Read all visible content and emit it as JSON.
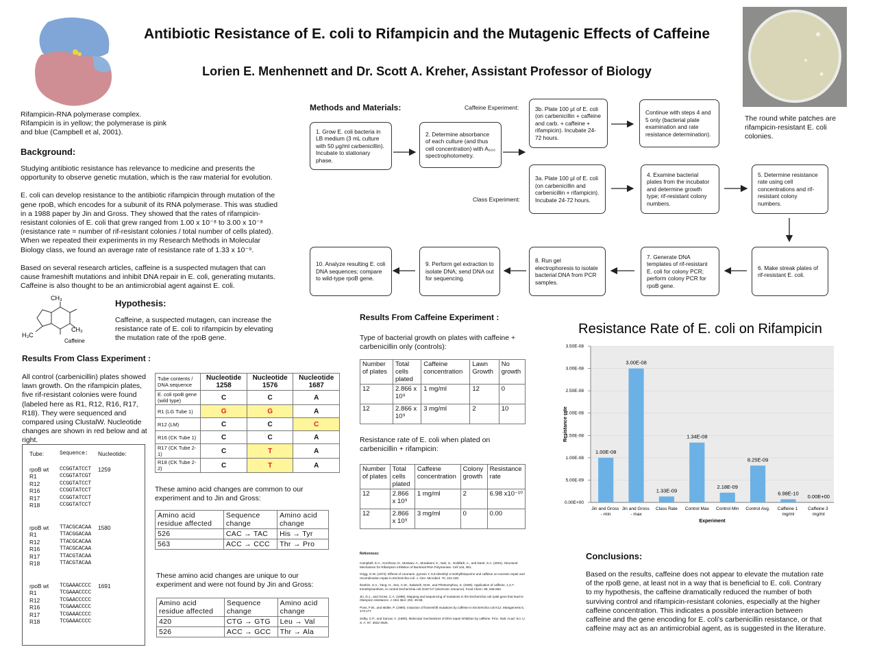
{
  "header": {
    "title": "Antibiotic Resistance of E. coli to Rifampicin and the Mutagenic Effects of Caffeine",
    "authors": "Lorien E. Menhennett and Dr. Scott A. Kreher, Assistant Professor of Biology"
  },
  "images": {
    "left_caption": "Rifampicin-RNA polymerase complex. Rifampicin is in yellow; the polymerase is pink and blue (Campbell et al, 2001).",
    "right_caption": "The round white patches are rifampicin-resistant E. coli colonies."
  },
  "background": {
    "heading": "Background:",
    "paragraphs": [
      "Studying antibiotic resistance has relevance to medicine and presents the opportunity to observe genetic mutation, which is the raw material for evolution.",
      "E. coli can develop resistance to the antibiotic rifampicin through mutation of the gene rpoB, which encodes for a subunit of its RNA polymerase. This was studied in a 1988 paper by Jin and Gross. They showed that the rates of rifampicin-resistant colonies of E. coli that grew ranged from 1.00 x 10⁻⁸ to 3.00 x 10⁻⁸ (resistance rate = number of rif-resistant colonies / total number of cells plated). When we repeated their experiments in my Research Methods in Molecular Biology class, we found an average rate of resistance rate of 1.33 x 10⁻⁹.",
      "Based on several research articles, caffeine is a suspected mutagen that can cause frameshift mutations and inhibit DNA repair in E. coli, generating mutants. Caffeine is also thought to be an antimicrobial agent against E. coli."
    ]
  },
  "hypothesis": {
    "heading": "Hypothesis:",
    "text": "Caffeine, a suspected mutagen, can increase the resistance rate of E. coli to rifampicin by elevating the mutation rate of the rpoB gene.",
    "molecule_labels": [
      "CH₃",
      "CH₃",
      "H₃C",
      "Caffeine"
    ]
  },
  "class_results": {
    "heading": "Results From Class Experiment :",
    "text": "All control (carbenicillin) plates showed lawn growth. On the rifampicin plates, five rif-resistant colonies were found (labeled here as R1, R12, R16, R17, R18). They were sequenced and compared using ClustalW. Nucleotide changes are shown in red below and at right.",
    "nucleotide_table": {
      "header": [
        "Tube contents / DNA sequence",
        "Nucleotide 1258",
        "Nucleotide 1576",
        "Nucleotide 1687"
      ],
      "rows": [
        [
          "E. coli rpoB gene (wild type)",
          "C",
          "C",
          "A"
        ],
        [
          "R1 (LG Tube 1)",
          "G",
          "G",
          "A"
        ],
        [
          "R12 (LM)",
          "C",
          "C",
          "C"
        ],
        [
          "R16 (CK Tube 1)",
          "C",
          "C",
          "A"
        ],
        [
          "R17 (CK Tube 2-1)",
          "C",
          "T",
          "A"
        ],
        [
          "R18 (CK Tube 2-2)",
          "C",
          "T",
          "A"
        ]
      ]
    },
    "alignment": {
      "header": [
        "Tube:",
        "Sequence:",
        "Nucleotide:"
      ],
      "groups": [
        [
          [
            "rpoB wt",
            "CCGGTATCCT",
            "1259"
          ],
          [
            "R1",
            "CCGGTATCGT"
          ],
          [
            "R12",
            "CCGGTATCCT"
          ],
          [
            "R16",
            "CCGGTATCCT"
          ],
          [
            "R17",
            "CCGGTATCCT"
          ],
          [
            "R18",
            "CCGGTATCCT"
          ]
        ],
        [
          [
            "rpoB wt",
            "TTACGCACAA",
            "1580"
          ],
          [
            "R1",
            "TTACGGACAA"
          ],
          [
            "R12",
            "TTACGCACAA"
          ],
          [
            "R16",
            "TTACGCACAA"
          ],
          [
            "R17",
            "TTACGTACAA"
          ],
          [
            "R18",
            "TTACGTACAA"
          ]
        ],
        [
          [
            "rpoB wt",
            "TCGAAACCCC",
            "1691"
          ],
          [
            "R1",
            "TCGAAACCCC"
          ],
          [
            "R12",
            "TCGAACCCCC"
          ],
          [
            "R16",
            "TCGAAACCCC"
          ],
          [
            "R17",
            "TCGAAACCCC"
          ],
          [
            "R18",
            "TCGAAACCCC"
          ]
        ]
      ]
    },
    "common_intro": "These amino acid changes are common to our experiment and to Jin and Gross:",
    "common_table": {
      "header": [
        "Amino acid residue affected",
        "Sequence change",
        "Amino acid change"
      ],
      "rows": [
        [
          "526",
          "CAC → TAC",
          "His → Tyr"
        ],
        [
          "563",
          "ACC → CCC",
          "Thr → Pro"
        ]
      ]
    },
    "unique_intro": "These amino acid changes are unique to our experiment and were not found by Jin and Gross:",
    "unique_table": {
      "header": [
        "Amino acid residue affected",
        "Sequence change",
        "Amino acid change"
      ],
      "rows": [
        [
          "420",
          "CTG → GTG",
          "Leu → Val"
        ],
        [
          "526",
          "ACC → GCC",
          "Thr → Ala"
        ]
      ]
    }
  },
  "methods": {
    "heading": "Methods and Materials:",
    "caffeine_label": "Caffeine Experiment:",
    "class_label": "Class Experiment:",
    "nodes": [
      "1. Grow E. coli bacteria in LB medium (3 mL culture with 50 μg/ml carbenicillin). Incubate to stationary phase.",
      "2. Determine absorbance of each culture (and thus cell concentration) with A₆₀₀ spectrophotometry.",
      "3b. Plate 100 μl of E. coli (on carbenicillin + caffeine and carb. + caffeine + rifampicin). Incubate 24-72 hours.",
      "Continue with steps 4 and 5 only (bacterial plate examination and rate resistance determination).",
      "3a. Plate 100 μl of E. coli (on carbenicillin and carbenicillin + rifampicin). Incubate 24-72 hours.",
      "4. Examine bacterial plates from the incubator and determine growth type; rif-resistant colony numbers.",
      "5. Determine resistance rate using cell concentrations and rif-resistant colony numbers.",
      "6. Make streak plates of rif-resistant E. coli.",
      "7. Generate DNA templates of rif-resistant E. coli for colony PCR; perform colony PCR for rpoB gene.",
      "8. Run gel electrophoresis to isolate bacterial DNA from PCR samples.",
      "9. Perform gel extraction to isolate DNA; send DNA out for sequencing.",
      "10. Analyze resulting E. coli DNA sequences; compare to wild-type rpoB gene."
    ]
  },
  "caffeine_results": {
    "heading": "Results From Caffeine Experiment :",
    "control_intro": "Type of bacterial growth on plates with caffeine + carbenicillin only (controls):",
    "control_table": {
      "header": [
        "Number of plates",
        "Total cells plated",
        "Caffeine concentration",
        "Lawn Growth",
        "No growth"
      ],
      "rows": [
        [
          "12",
          "2.866 x 10⁹",
          "1 mg/ml",
          "12",
          "0"
        ],
        [
          "12",
          "2.866 x 10⁹",
          "3 mg/ml",
          "2",
          "10"
        ]
      ]
    },
    "rate_intro": "Resistance rate of E. coli when plated on carbenicillin + rifampicin:",
    "rate_table": {
      "header": [
        "Number of plates",
        "Total cells plated",
        "Caffeine concentration",
        "Colony growth",
        "Resistance rate"
      ],
      "rows": [
        [
          "12",
          "2.866 x 10⁹",
          "1 mg/ml",
          "2",
          "6.98 x10⁻¹⁰"
        ],
        [
          "12",
          "2.866 x 10⁹",
          "3 mg/ml",
          "0",
          "0.00"
        ]
      ]
    }
  },
  "chart_data": {
    "type": "bar",
    "title": "Resistance Rate of E. coli on Rifampicin",
    "x_label": "Experiment",
    "y_label": "Resistance rate",
    "categories": [
      "Jin and Gross - min",
      "Jin and Gross - max",
      "Class Rate",
      "Control Max",
      "Control Min",
      "Control Avg.",
      "Caffeine 1 mg/ml",
      "Caffeine 3 mg/ml"
    ],
    "values": [
      1e-08,
      3e-08,
      1.33e-09,
      1.34e-08,
      2.18e-09,
      8.25e-09,
      6.98e-10,
      0
    ],
    "value_labels": [
      "1.00E-08",
      "3.00E-08",
      "1.33E-09",
      "1.34E-08",
      "2.18E-09",
      "8.25E-09",
      "6.98E-10",
      "0.00E+00"
    ],
    "color": "#6cb1e5",
    "ylim": [
      0,
      3.5e-08
    ],
    "yticks": [
      {
        "value": 0,
        "label": "0.00E+00"
      },
      {
        "value": 5e-09,
        "label": "5.00E-09"
      },
      {
        "value": 1e-08,
        "label": "1.00E-08"
      },
      {
        "value": 1.5e-08,
        "label": "1.50E-08"
      },
      {
        "value": 2e-08,
        "label": "2.00E-08"
      },
      {
        "value": 2.5e-08,
        "label": "2.50E-08"
      },
      {
        "value": 3e-08,
        "label": "3.00E-08"
      },
      {
        "value": 3.5e-08,
        "label": "3.50E-08"
      }
    ],
    "grid": true
  },
  "references": {
    "heading": "References:",
    "items": [
      "Campbell, E.A., Korzheva, N., Mustaev, A., Murakami, K., Nair, S., Goldfarb, A., and Darst, S.A. (2001). Structural Mechanism for Rifampicin Inhibition of Bacterial RNA Polymerase. Cell 104, 901.",
      "Grigg, G.W. (1972). Effects of coumarin, pyronin Y, 6,9-dimethyl 2-methylthiopurine and caffeine on excision repair and recombination repair in Escherichia coli. J. Gen. Microbiol. 70, 221-230.",
      "Ibrahim, S.A., Yang, H., Seo, C.W., Salameh, M.M., and Phetsomphou, S. (2006). Application of caffeine, 1,3,7-trimethylxanthine, to control Escherichia coli O157:H7 (electronic resource). Food Chem. 99, 645-650.",
      "Jin, D.J., and Gross, C.A. (1988). Mapping and sequencing of mutations in the Escherichia coli rpoB gene that lead to rifampicin resistance. J. Mol. Biol. 202, 45-58.",
      "Pons, F.W., and Müller, P. (1990). Induction of frameshift mutations by caffeine in Escherichia coli K12. Mutagenesis 5, 173-177.",
      "Selby, C.P., and Sancar, A. (1990). Molecular mechanisms of DNA repair inhibition by caffeine. Proc. Natl. Acad. Sci. U. S. A. 87, 3522-3525."
    ]
  },
  "conclusions": {
    "heading": "Conclusions:",
    "text": "Based on the results, caffeine does not appear to elevate the mutation rate of the rpoB gene, at least not in a way that is beneficial to E. coli. Contrary to my hypothesis, the caffeine dramatically reduced the number of both surviving control and rifampicin-resistant colonies, especially at the higher caffeine concentration. This indicates a possible interaction between caffeine and the gene encoding for E. coli's carbenicillin resistance, or that caffeine may act as an antimicrobial agent, as is suggested in the literature."
  }
}
